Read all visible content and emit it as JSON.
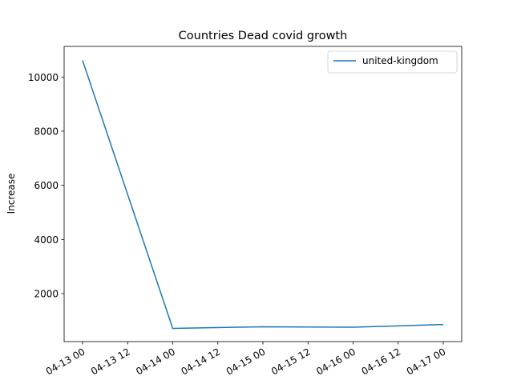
{
  "chart_data": {
    "type": "line",
    "title": "Countries Dead covid growth",
    "xlabel": "",
    "ylabel": "Increase",
    "x": [
      "2020-04-13 00:00",
      "2020-04-14 00:00",
      "2020-04-15 00:00",
      "2020-04-16 00:00",
      "2020-04-17 00:00"
    ],
    "x_ticks": [
      "04-13 00",
      "04-13 12",
      "04-14 00",
      "04-14 12",
      "04-15 00",
      "04-15 12",
      "04-16 00",
      "04-16 12",
      "04-17 00"
    ],
    "y_ticks": [
      2000,
      4000,
      6000,
      8000,
      10000
    ],
    "ylim": [
      230,
      11130
    ],
    "series": [
      {
        "name": "united-kingdom",
        "values": [
          10612,
          717,
          778,
          761,
          861
        ],
        "color": "#1f77b4"
      }
    ],
    "legend_position": "upper right",
    "grid": false
  }
}
